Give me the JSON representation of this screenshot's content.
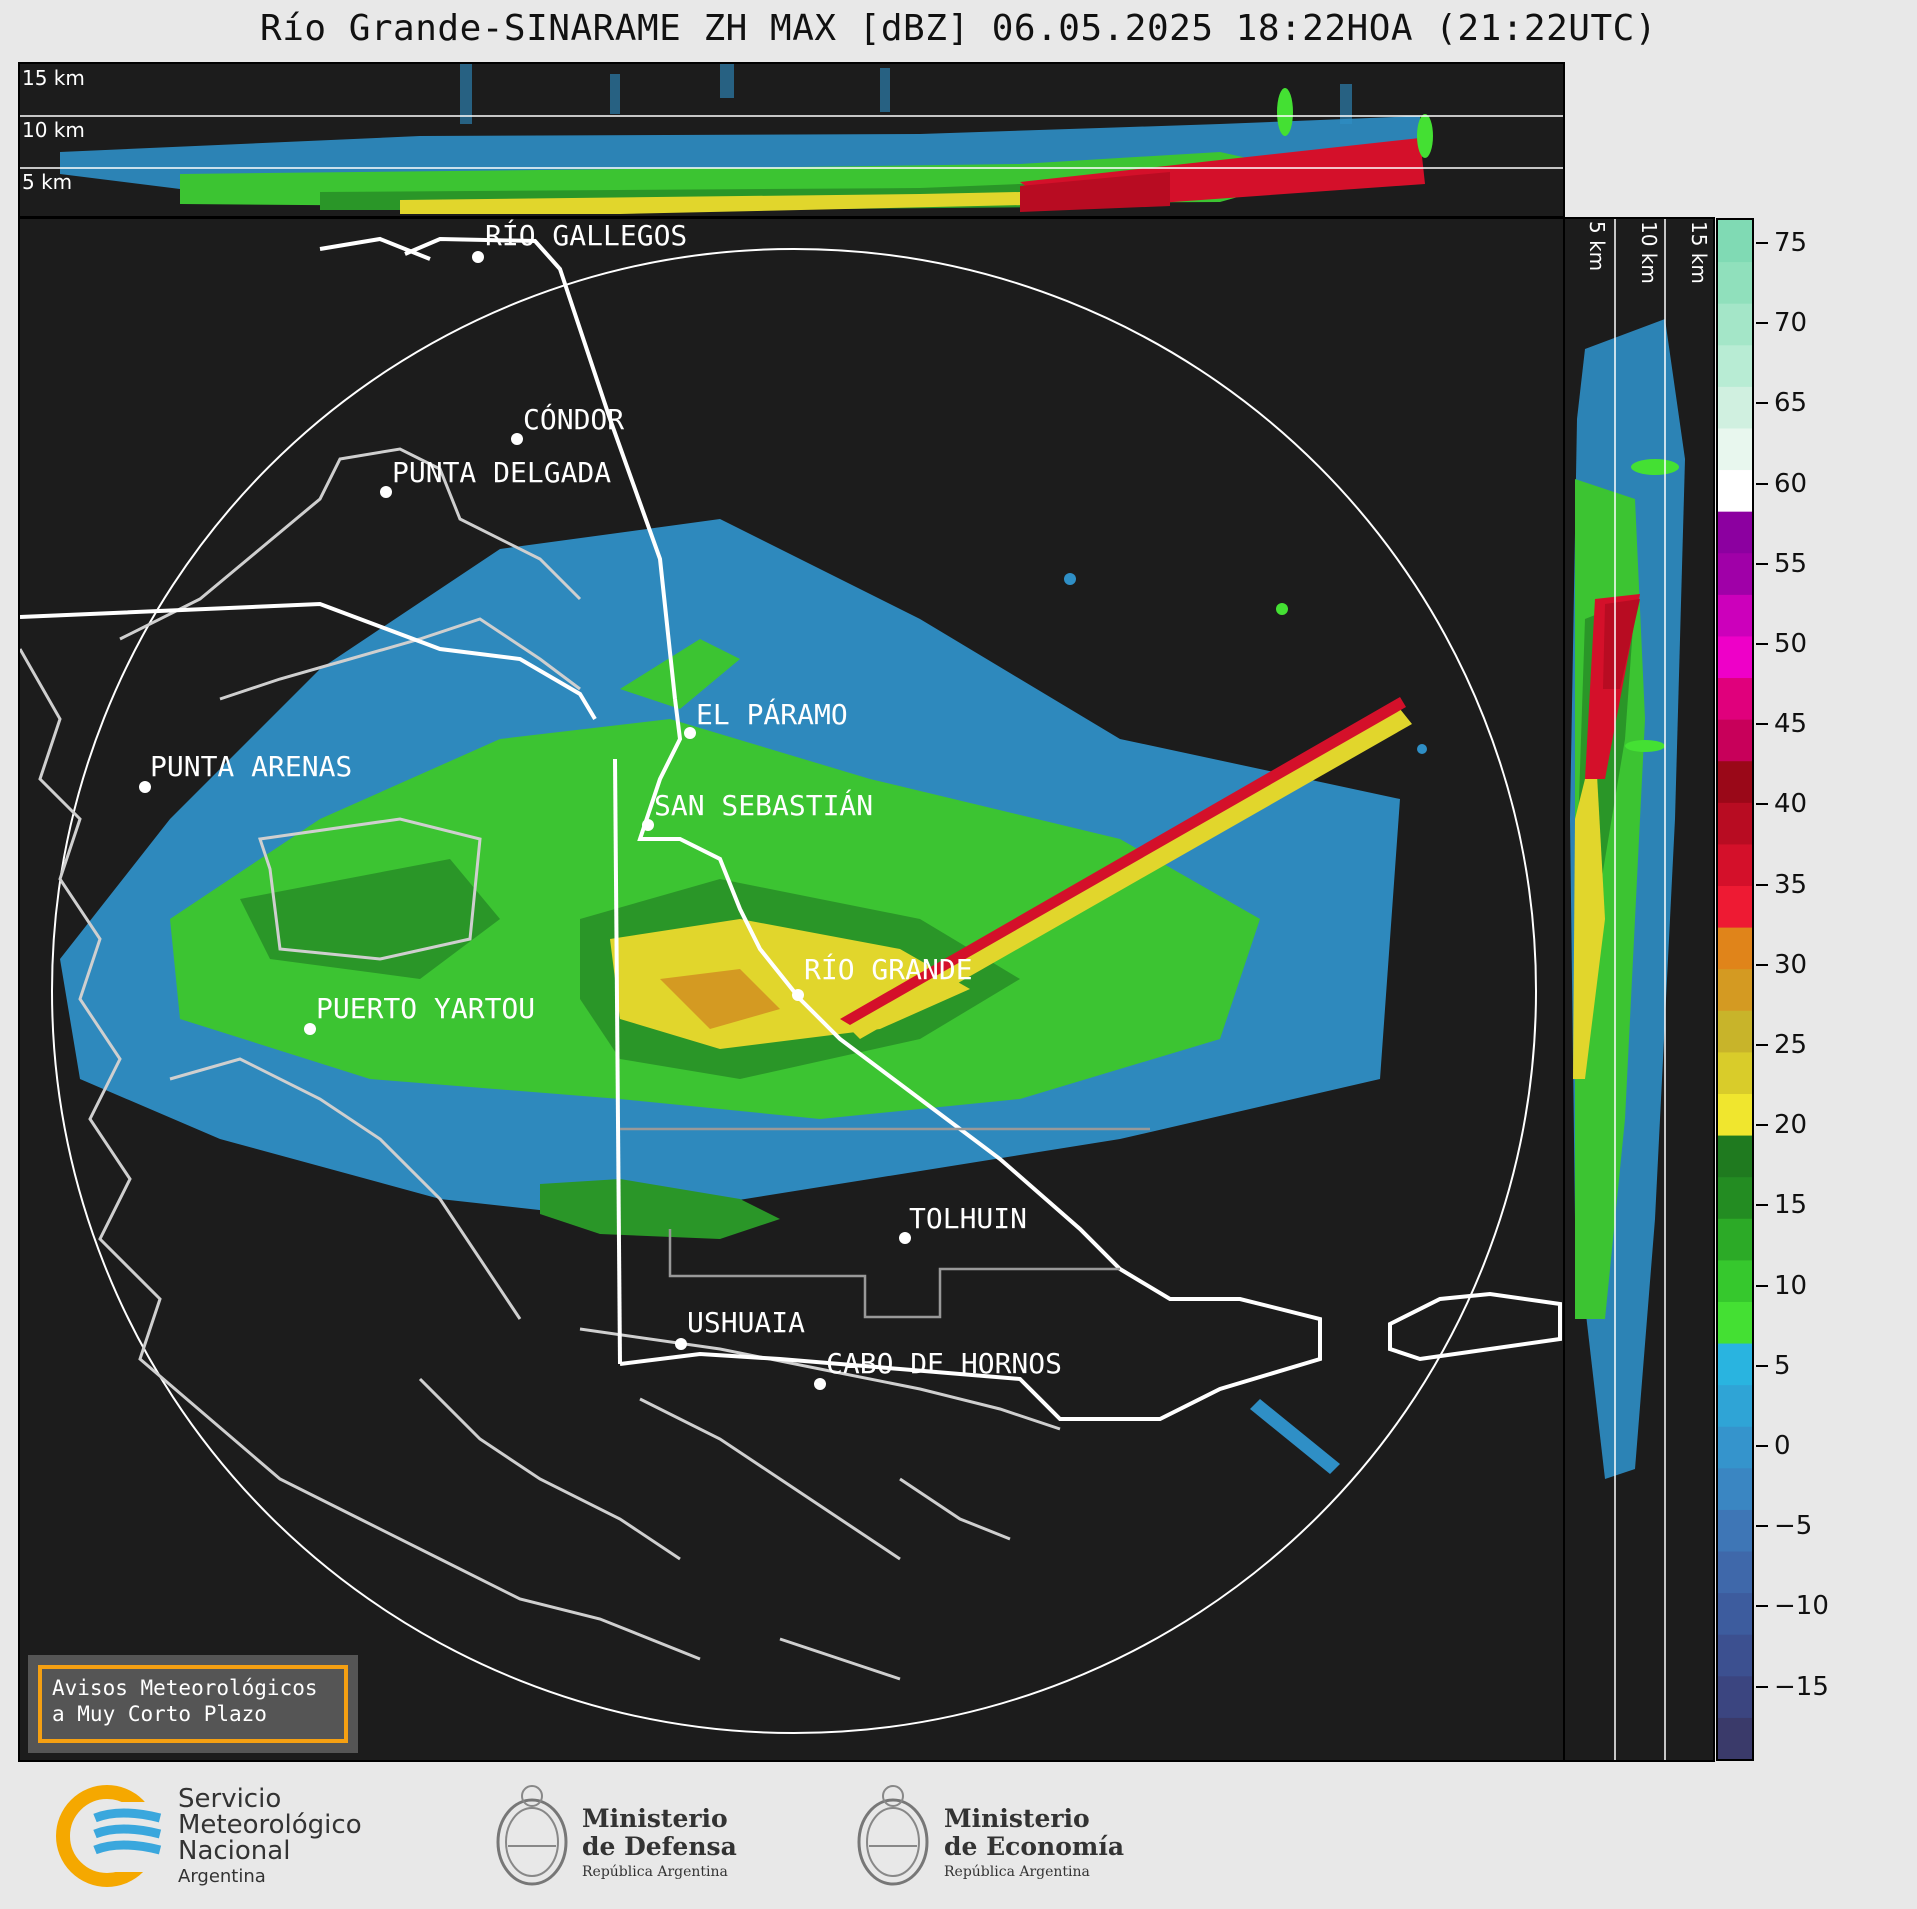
{
  "title": "Río Grande-SINARAME ZH MAX [dBZ] 06.05.2025 18:22HOA (21:22UTC)",
  "top_panel": {
    "height_labels": [
      "15 km",
      "10 km",
      "5 km"
    ]
  },
  "right_panel": {
    "height_labels": [
      "5 km",
      "10 km",
      "15 km"
    ]
  },
  "colorbar": {
    "ticks": [
      "75",
      "70",
      "65",
      "60",
      "55",
      "50",
      "45",
      "40",
      "35",
      "30",
      "25",
      "20",
      "15",
      "10",
      "5",
      "0",
      "−5",
      "−10",
      "−15"
    ],
    "colors": [
      "#3a3a6a",
      "#3b4580",
      "#3c5090",
      "#3d5c9e",
      "#3f68aa",
      "#3e76b6",
      "#3a86c2",
      "#3594cc",
      "#2fa4d6",
      "#29b4e0",
      "#44e033",
      "#36c82d",
      "#2caa27",
      "#238c22",
      "#1f7a1f",
      "#f0e62e",
      "#d9cc2a",
      "#c8b42a",
      "#d49a22",
      "#e0841a",
      "#ee1a33",
      "#d4102a",
      "#b80c22",
      "#9a0818",
      "#c8005a",
      "#e0007c",
      "#ee00c8",
      "#cc00bb",
      "#a000a8",
      "#8c00a0",
      "#ffffff",
      "#e8f7ee",
      "#d0f0e0",
      "#b8ecd4",
      "#a4e6c8",
      "#90e0bc",
      "#80dab4"
    ]
  },
  "cities": [
    {
      "name": "RÍO GALLEGOS"
    },
    {
      "name": "CÓNDOR"
    },
    {
      "name": "PUNTA DELGADA"
    },
    {
      "name": "PUNTA ARENAS"
    },
    {
      "name": "EL PÁRAMO"
    },
    {
      "name": "SAN SEBASTIÁN"
    },
    {
      "name": "RÍO GRANDE"
    },
    {
      "name": "PUERTO YARTOU"
    },
    {
      "name": "TOLHUIN"
    },
    {
      "name": "USHUAIA"
    },
    {
      "name": "CABO DE HORNOS"
    }
  ],
  "badge": {
    "line1": "Avisos Meteorológicos",
    "line2": "a Muy Corto Plazo"
  },
  "footer": {
    "smn": {
      "line1": "Servicio",
      "line2": "Meteorológico",
      "line3": "Nacional",
      "line4": "Argentina"
    },
    "defensa": {
      "line1": "Ministerio",
      "line2": "de Defensa",
      "line3": "República Argentina"
    },
    "economia": {
      "line1": "Ministerio",
      "line2": "de Economía",
      "line3": "República Argentina"
    }
  }
}
